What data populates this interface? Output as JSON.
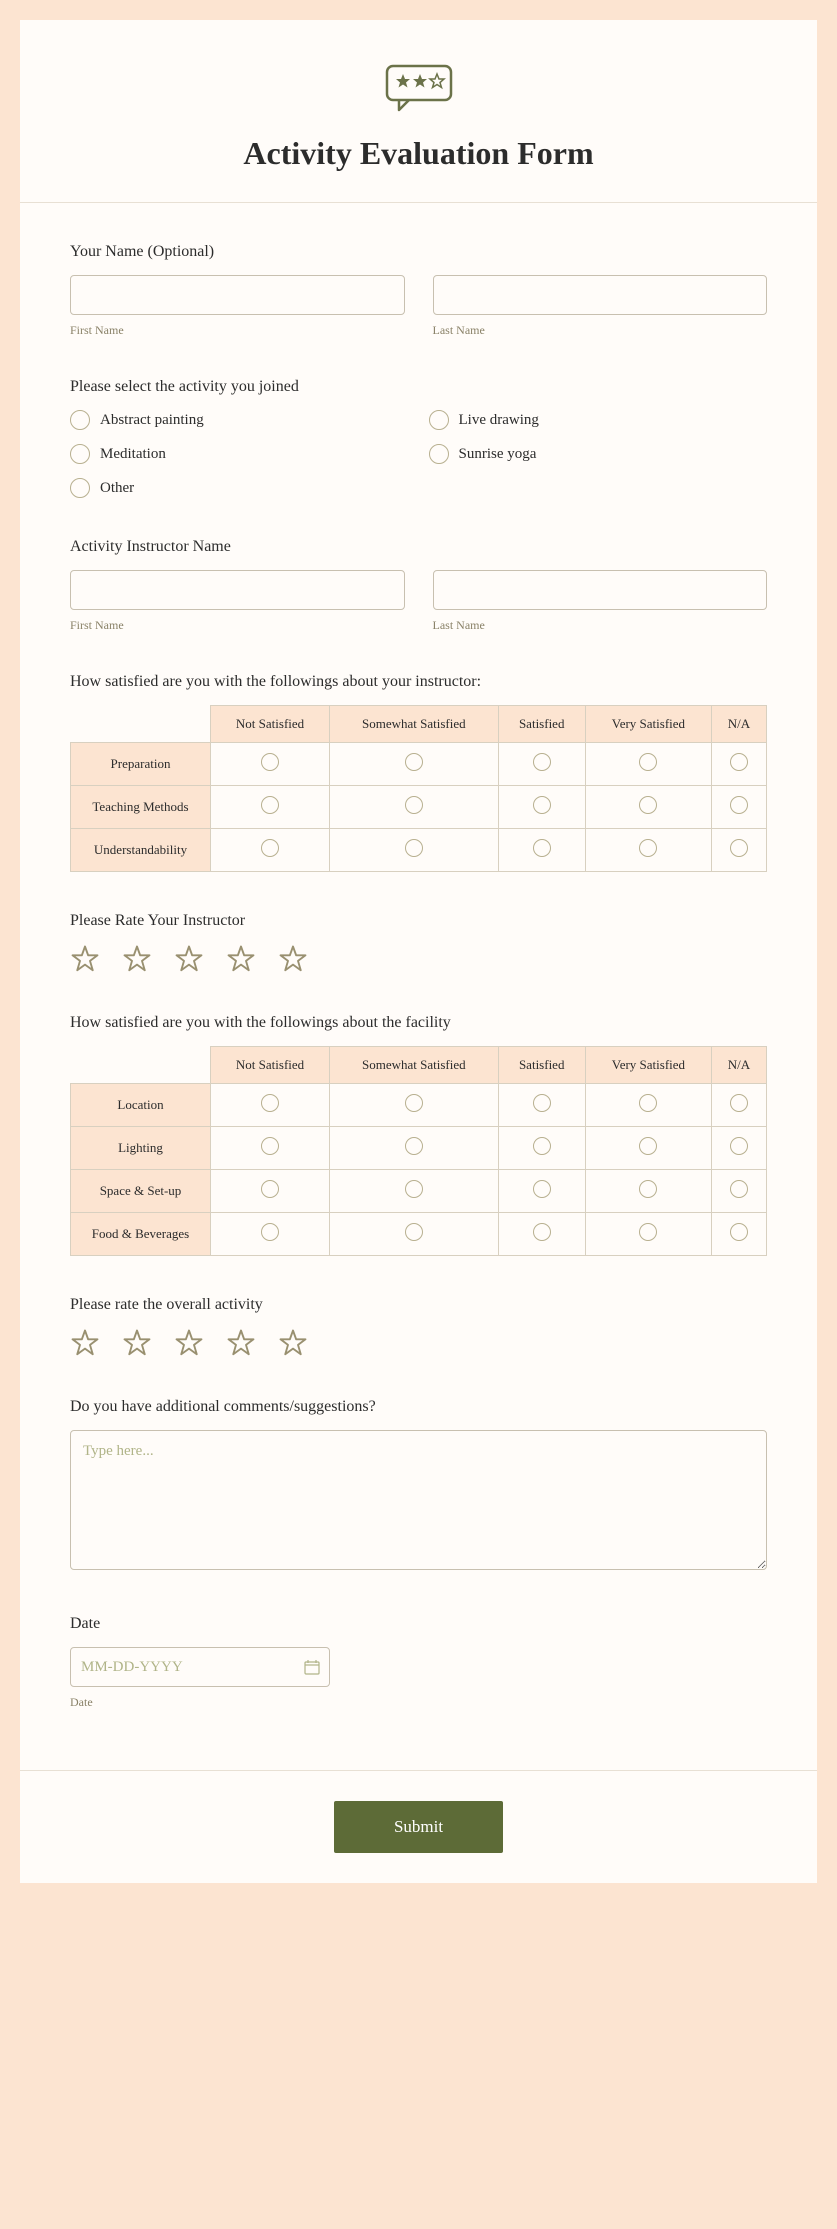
{
  "colors": {
    "page_bg": "#fce4d1",
    "form_bg": "#fffcf9",
    "accent": "#5d6b37",
    "border": "#c8c0b0",
    "sublabel": "#8a8268",
    "matrix_header_bg": "#fce4d1",
    "star_stroke": "#999070"
  },
  "header": {
    "title": "Activity Evaluation Form"
  },
  "your_name": {
    "label": "Your Name (Optional)",
    "first_sub": "First Name",
    "last_sub": "Last Name"
  },
  "activity_select": {
    "label": "Please select the activity you joined",
    "options": [
      "Abstract painting",
      "Live drawing",
      "Meditation",
      "Sunrise yoga",
      "Other"
    ]
  },
  "instructor_name": {
    "label": "Activity Instructor Name",
    "first_sub": "First Name",
    "last_sub": "Last Name"
  },
  "instructor_matrix": {
    "label": "How satisfied are you with the followings about your instructor:",
    "columns": [
      "Not Satisfied",
      "Somewhat Satisfied",
      "Satisfied",
      "Very Satisfied",
      "N/A"
    ],
    "rows": [
      "Preparation",
      "Teaching Methods",
      "Understandability"
    ]
  },
  "rate_instructor": {
    "label": "Please Rate Your Instructor",
    "stars": 5
  },
  "facility_matrix": {
    "label": "How satisfied are you with the followings about the facility",
    "columns": [
      "Not Satisfied",
      "Somewhat Satisfied",
      "Satisfied",
      "Very Satisfied",
      "N/A"
    ],
    "rows": [
      "Location",
      "Lighting",
      "Space & Set-up",
      "Food & Beverages"
    ]
  },
  "rate_overall": {
    "label": "Please rate the overall activity",
    "stars": 5
  },
  "comments": {
    "label": "Do you have additional comments/suggestions?",
    "placeholder": "Type here..."
  },
  "date": {
    "label": "Date",
    "placeholder": "MM-DD-YYYY",
    "sub": "Date"
  },
  "submit": {
    "label": "Submit"
  }
}
